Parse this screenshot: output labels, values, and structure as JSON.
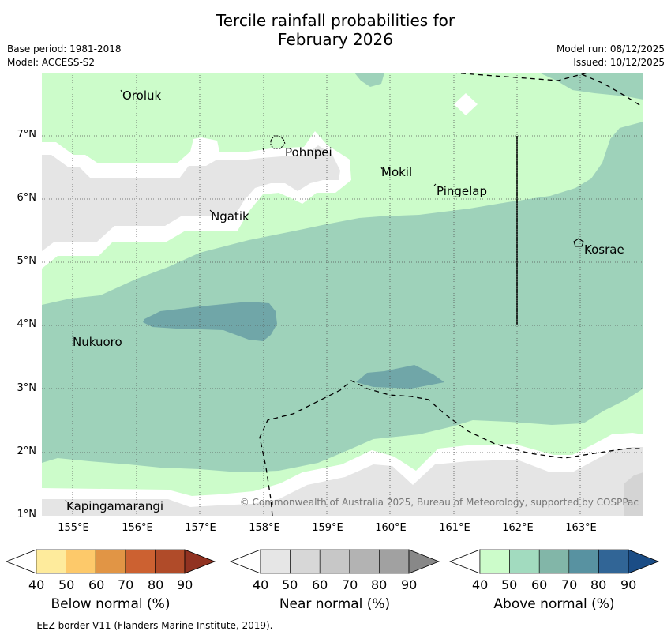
{
  "title": {
    "line1": "Tercile rainfall probabilities for",
    "line2": "February 2026"
  },
  "meta": {
    "base_period": "Base period: 1981-2018",
    "model": "Model: ACCESS-S2",
    "model_run": "Model run: 08/12/2025",
    "issued": "Issued: 10/12/2025"
  },
  "map": {
    "lat_ticks": [
      "7°N",
      "6°N",
      "5°N",
      "4°N",
      "3°N",
      "2°N",
      "1°N"
    ],
    "lon_ticks": [
      "155°E",
      "156°E",
      "157°E",
      "158°E",
      "159°E",
      "160°E",
      "161°E",
      "162°E",
      "163°E"
    ],
    "places": [
      "Oroluk",
      "Pohnpei",
      "Mokil",
      "Pingelap",
      "Ngatik",
      "Kosrae",
      "Nukuoro",
      "Kapingamarangi"
    ],
    "copyright": "© Commonwealth of Australia 2025, Bureau of Meteorology, supported by COSPPac",
    "colors": {
      "above_50": "#ccfcca",
      "above_60": "#9ed2ba",
      "above_70": "#70a6a8",
      "near_50": "#e5e5e5"
    }
  },
  "colorbars": {
    "ticks": [
      "40",
      "50",
      "60",
      "70",
      "80",
      "90"
    ],
    "below": {
      "title": "Below normal (%)",
      "colors": [
        "#ffffff",
        "#feeb9c",
        "#fdc96a",
        "#e19545",
        "#cc6131",
        "#b04b29",
        "#913221"
      ]
    },
    "near": {
      "title": "Near normal (%)",
      "colors": [
        "#ffffff",
        "#e6e6e6",
        "#d7d7d7",
        "#c7c7c7",
        "#b3b3b3",
        "#a1a1a1",
        "#888888"
      ]
    },
    "above": {
      "title": "Above normal (%)",
      "colors": [
        "#ffffff",
        "#ccfcca",
        "#a2dbbf",
        "#82b6a8",
        "#5892a1",
        "#316596",
        "#1b4d86"
      ]
    }
  },
  "footnote": "--  --  -- EEZ border V11 (Flanders Marine Institute, 2019)."
}
